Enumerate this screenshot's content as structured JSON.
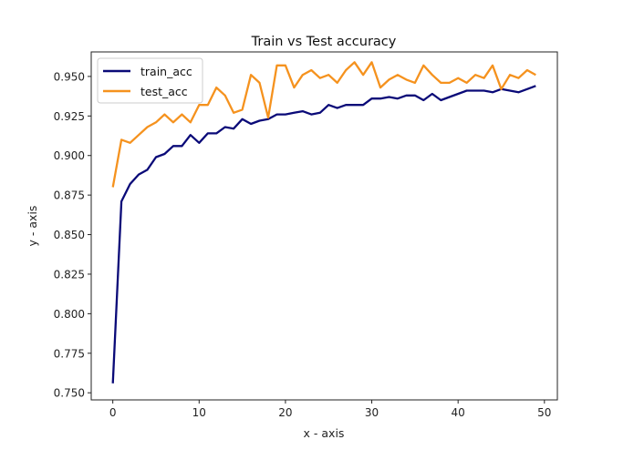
{
  "chart_data": {
    "type": "line",
    "title": "Train vs Test accuracy",
    "xlabel": "x - axis",
    "ylabel": "y - axis",
    "xlim": [
      -2.5,
      51.5
    ],
    "ylim": [
      0.7455,
      0.9655
    ],
    "xticks": [
      0,
      10,
      20,
      30,
      40,
      50
    ],
    "yticks": [
      0.75,
      0.775,
      0.8,
      0.825,
      0.85,
      0.875,
      0.9,
      0.925,
      0.95
    ],
    "ytick_labels": [
      "0.750",
      "0.775",
      "0.800",
      "0.825",
      "0.850",
      "0.875",
      "0.900",
      "0.925",
      "0.950"
    ],
    "grid": false,
    "legend_position": "upper left",
    "x": [
      0,
      1,
      2,
      3,
      4,
      5,
      6,
      7,
      8,
      9,
      10,
      11,
      12,
      13,
      14,
      15,
      16,
      17,
      18,
      19,
      20,
      21,
      22,
      23,
      24,
      25,
      26,
      27,
      28,
      29,
      30,
      31,
      32,
      33,
      34,
      35,
      36,
      37,
      38,
      39,
      40,
      41,
      42,
      43,
      44,
      45,
      46,
      47,
      48,
      49
    ],
    "series": [
      {
        "name": "train_acc",
        "color": "#0a0a78",
        "values": [
          0.756,
          0.871,
          0.882,
          0.888,
          0.891,
          0.899,
          0.901,
          0.906,
          0.906,
          0.913,
          0.908,
          0.914,
          0.914,
          0.918,
          0.917,
          0.923,
          0.92,
          0.922,
          0.923,
          0.926,
          0.926,
          0.927,
          0.928,
          0.926,
          0.927,
          0.932,
          0.93,
          0.932,
          0.932,
          0.932,
          0.936,
          0.936,
          0.937,
          0.936,
          0.938,
          0.938,
          0.935,
          0.939,
          0.935,
          0.937,
          0.939,
          0.941,
          0.941,
          0.941,
          0.94,
          0.942,
          0.941,
          0.94,
          0.942,
          0.944
        ]
      },
      {
        "name": "test_acc",
        "color": "#f5921e",
        "values": [
          0.88,
          0.91,
          0.908,
          0.913,
          0.918,
          0.921,
          0.926,
          0.921,
          0.926,
          0.921,
          0.932,
          0.932,
          0.943,
          0.938,
          0.927,
          0.929,
          0.951,
          0.946,
          0.924,
          0.957,
          0.957,
          0.943,
          0.951,
          0.954,
          0.949,
          0.951,
          0.946,
          0.954,
          0.959,
          0.951,
          0.959,
          0.943,
          0.948,
          0.951,
          0.948,
          0.946,
          0.957,
          0.951,
          0.946,
          0.946,
          0.949,
          0.946,
          0.951,
          0.949,
          0.957,
          0.942,
          0.951,
          0.949,
          0.954,
          0.951
        ]
      }
    ]
  }
}
